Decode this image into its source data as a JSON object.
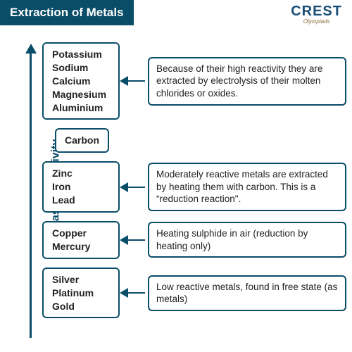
{
  "title": "Extraction of Metals",
  "logo": {
    "main": "CREST",
    "sub": "Olympiads"
  },
  "axis_label": "Increasing reactivity",
  "colors": {
    "primary": "#0a4d68",
    "text": "#222222",
    "background": "#ffffff",
    "logo_sub": "#8b6f3e"
  },
  "groups": [
    {
      "metals": [
        "Potassium",
        "Sodium",
        "Calcium",
        "Magnesium",
        "Aluminium"
      ],
      "description": "Because of their high reactivity they are extracted by electrolysis of their molten chlorides or oxides."
    },
    {
      "metals": [
        "Carbon"
      ],
      "description": null
    },
    {
      "metals": [
        "Zinc",
        "Iron",
        "Lead"
      ],
      "description": "Moderately reactive metals are extracted by heating them with carbon. This is a “reduction reaction\"."
    },
    {
      "metals": [
        "Copper",
        "Mercury"
      ],
      "description": "Heating sulphide in air (reduction by heating only)"
    },
    {
      "metals": [
        "Silver",
        "Platinum",
        "Gold"
      ],
      "description": "Low reactive metals, found in free state (as metals)"
    }
  ]
}
